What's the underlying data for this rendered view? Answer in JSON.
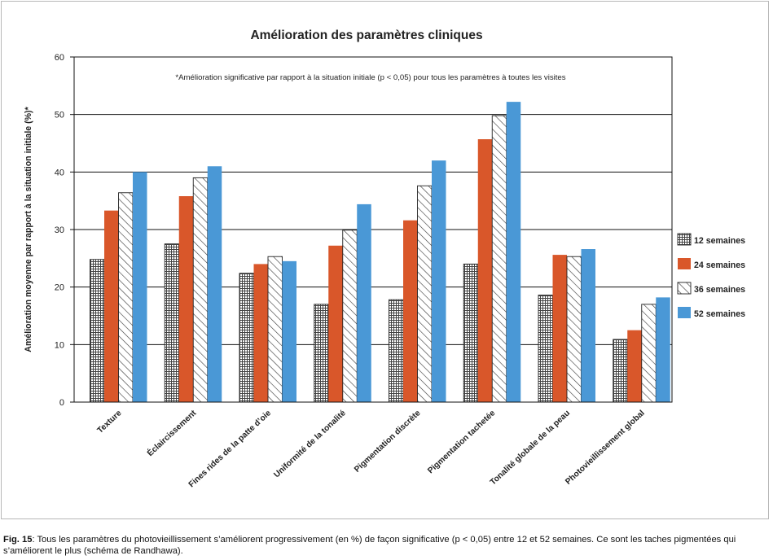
{
  "figure": {
    "caption_label": "Fig. 15",
    "caption_text": ": Tous les paramètres du photovieillissement s’améliorent progressivement (en %) de façon significative (p < 0,05) entre 12 et 52 semaines. Ce sont les taches pigmentées qui s’améliorent le plus (schéma de Randhawa)."
  },
  "chart_data": {
    "type": "bar",
    "title": "Amélioration des paramètres cliniques",
    "annotation": "*Amélioration significative par rapport à la situation initiale (p < 0,05) pour tous les paramètres à toutes les visites",
    "ylabel": "Amélioration moyenne par rapport à la situation initiale (%)*",
    "xlabel": "",
    "ylim": [
      0,
      60
    ],
    "yticks": [
      0,
      10,
      20,
      30,
      40,
      50,
      60
    ],
    "grid": true,
    "legend_position": "right",
    "categories": [
      "Texture",
      "Éclaircissement",
      "Fines rides de la patte d’oie",
      "Uniformité de la tonalité",
      "Pigmentation discrète",
      "Pigmentation tachetée",
      "Tonalité globale de la peau",
      "Photovieillissement global"
    ],
    "series": [
      {
        "name": "12 semaines",
        "pattern": "grid",
        "color": "#555555",
        "values": [
          24.8,
          27.5,
          22.4,
          17.0,
          17.8,
          24.0,
          18.6,
          10.9
        ]
      },
      {
        "name": "24 semaines",
        "pattern": "solid",
        "color": "#d9572a",
        "values": [
          33.3,
          35.8,
          24.0,
          27.2,
          31.6,
          45.7,
          25.6,
          12.5
        ]
      },
      {
        "name": "36 semaines",
        "pattern": "hatch",
        "color": "#333333",
        "values": [
          36.4,
          39.0,
          25.3,
          29.9,
          37.6,
          49.8,
          25.3,
          17.0
        ]
      },
      {
        "name": "52 semaines",
        "pattern": "solid",
        "color": "#4a98d6",
        "values": [
          40.0,
          41.0,
          24.5,
          34.4,
          42.0,
          52.2,
          26.6,
          18.2
        ]
      }
    ]
  }
}
